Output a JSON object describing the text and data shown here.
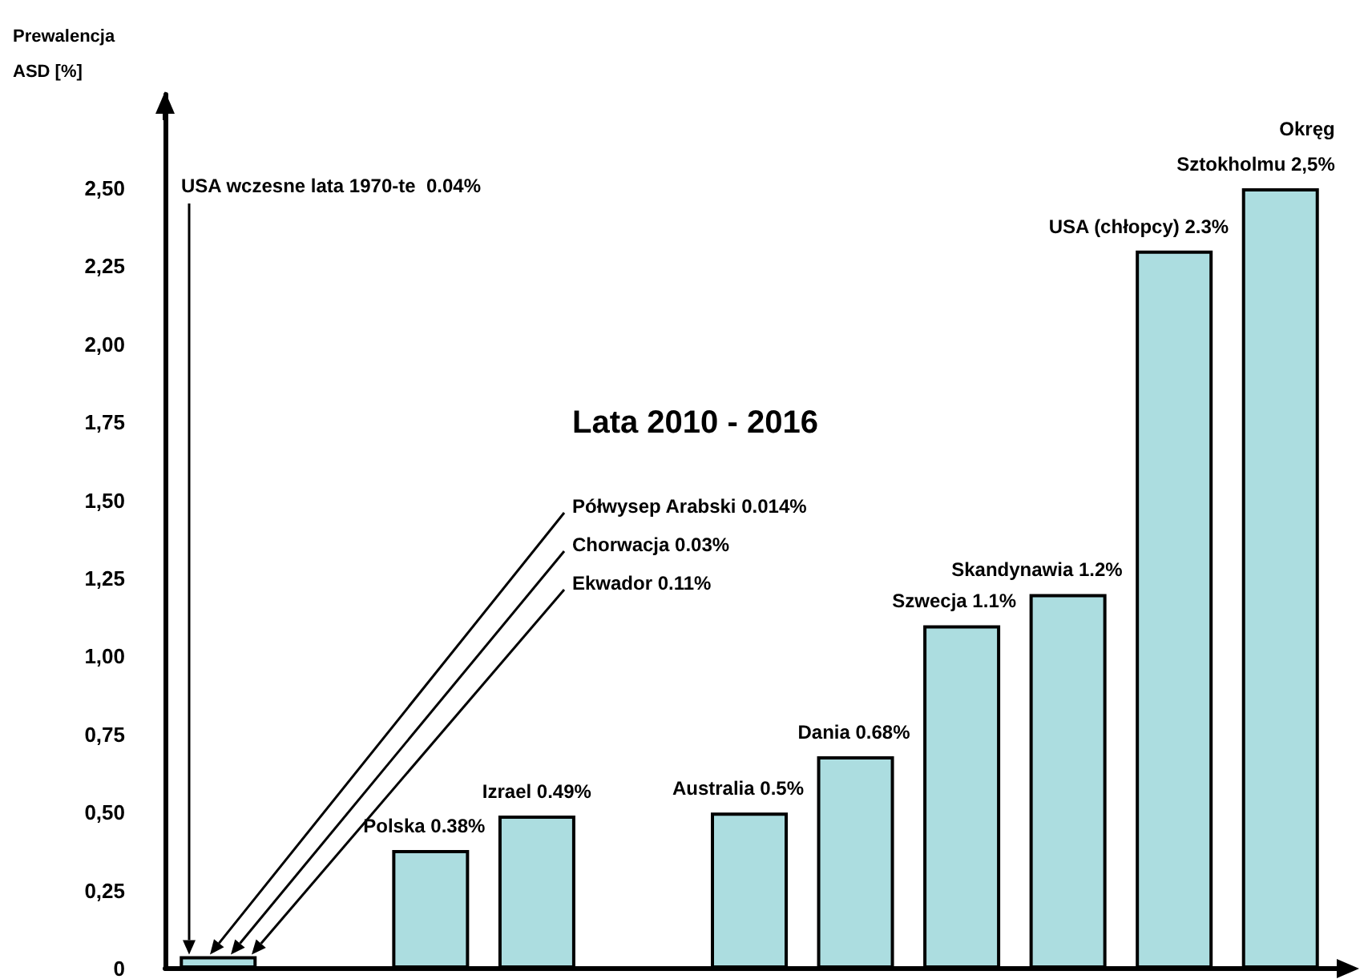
{
  "chart_data": {
    "type": "bar",
    "title": "Lata 2010 - 2016",
    "ylabel": "Prewalencja\nASD [%]",
    "categories": [
      null,
      null,
      null,
      null,
      null,
      null,
      null,
      null,
      null,
      null,
      null
    ],
    "values": [
      0.04,
      null,
      0.38,
      0.49,
      null,
      0.5,
      0.68,
      1.1,
      1.2,
      2.3,
      2.5
    ],
    "value_labels": [
      null,
      null,
      "Polska 0.38%",
      "Izrael 0.49%",
      null,
      "Australia 0.5%",
      "Dania 0.68%",
      "Szwecja 1.1%",
      "Skandynawia 1.2%",
      "USA (chłopcy) 2.3%",
      "Okręg\nSztokholmu 2,5%"
    ],
    "color": "#acdde0",
    "annotations": [
      "USA wczesne lata 1970-te  0.04%",
      "Półwysep Arabski 0.014%",
      "Chorwacja 0.03%",
      "Ekwador 0.11%"
    ],
    "ylim": [
      0,
      2.8
    ],
    "yticks": [
      0,
      {
        "value": 0.25,
        "label": "0,25"
      },
      {
        "value": 0.5,
        "label": "0,50"
      },
      {
        "value": 0.75,
        "label": "0,75"
      },
      {
        "value": 1,
        "label": "1,00"
      },
      {
        "value": 1.25,
        "label": "1,25"
      },
      {
        "value": 1.5,
        "label": "1,50"
      },
      {
        "value": 1.75,
        "label": "1,75"
      },
      {
        "value": 2,
        "label": "2,00"
      },
      {
        "value": 2.25,
        "label": "2,25"
      },
      {
        "value": 2.5,
        "label": "2,50"
      }
    ],
    "grid": false,
    "tick_labels": "y"
  }
}
